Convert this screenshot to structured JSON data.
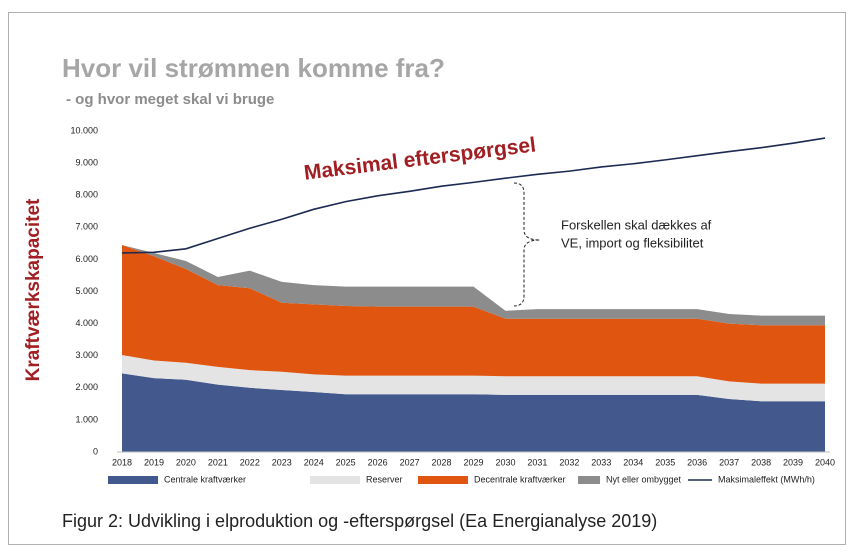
{
  "chart_data": {
    "type": "stacked_area",
    "title": "Hvor vil strømmen komme fra?",
    "subtitle": "- og hvor meget skal vi bruge",
    "ylabel": "Kraftværkskapacitet",
    "annotation_title": "Maksimal efterspørgsel",
    "annotation_note": [
      "Forskellen skal dækkes af",
      "VE, import og fleksibilitet"
    ],
    "caption": "Figur 2:  Udvikling i elproduktion og -efterspørgsel (Ea Energianalyse 2019)",
    "x": [
      2018,
      2019,
      2020,
      2021,
      2022,
      2023,
      2024,
      2025,
      2026,
      2027,
      2028,
      2029,
      2030,
      2031,
      2032,
      2033,
      2034,
      2035,
      2036,
      2037,
      2038,
      2039,
      2040
    ],
    "xlim": [
      2018,
      2040
    ],
    "ylim": [
      0,
      10000
    ],
    "yticks": [
      0,
      {
        "value": 1000,
        "label": "1.000"
      },
      {
        "value": 2000,
        "label": "2.000"
      },
      {
        "value": 3000,
        "label": "3.000"
      },
      {
        "value": 4000,
        "label": "4.000"
      },
      {
        "value": 5000,
        "label": "5.000"
      },
      {
        "value": 6000,
        "label": "6.000"
      },
      {
        "value": 7000,
        "label": "7.000"
      },
      {
        "value": 8000,
        "label": "8.000"
      },
      {
        "value": 9000,
        "label": "9.000"
      },
      {
        "value": 10000,
        "label": "10.000"
      }
    ],
    "series": [
      {
        "name": "Centrale kraftværker",
        "type": "area",
        "color": "#43588d",
        "values": [
          2450,
          2300,
          2250,
          2100,
          2000,
          1930,
          1870,
          1800,
          1800,
          1800,
          1800,
          1800,
          1780,
          1780,
          1780,
          1780,
          1780,
          1780,
          1780,
          1650,
          1580,
          1580,
          1580
        ]
      },
      {
        "name": "Reserver",
        "type": "area",
        "color": "#e4e4e4",
        "values": [
          570,
          550,
          530,
          550,
          550,
          570,
          550,
          580,
          580,
          580,
          580,
          580,
          580,
          580,
          580,
          580,
          580,
          580,
          580,
          550,
          550,
          550,
          550
        ]
      },
      {
        "name": "Decentrale kraftværker",
        "type": "area",
        "color": "#e0550f",
        "values": [
          3430,
          3250,
          2920,
          2550,
          2550,
          2150,
          2180,
          2170,
          2150,
          2150,
          2150,
          2150,
          1790,
          1790,
          1790,
          1790,
          1790,
          1790,
          1790,
          1800,
          1820,
          1820,
          1820
        ]
      },
      {
        "name": "Nyt eller ombygget",
        "type": "area",
        "color": "#8c8c8c",
        "values": [
          0,
          100,
          250,
          250,
          550,
          650,
          600,
          600,
          620,
          620,
          620,
          620,
          250,
          300,
          300,
          300,
          300,
          300,
          300,
          300,
          300,
          300,
          300
        ]
      },
      {
        "name": "Maksimaleffekt (MWh/h)",
        "type": "line",
        "color": "#1c2a52",
        "values": [
          6200,
          6220,
          6330,
          6650,
          6970,
          7250,
          7560,
          7800,
          7980,
          8120,
          8280,
          8400,
          8530,
          8650,
          8750,
          8880,
          8980,
          9100,
          9230,
          9360,
          9480,
          9620,
          9780
        ]
      }
    ]
  }
}
